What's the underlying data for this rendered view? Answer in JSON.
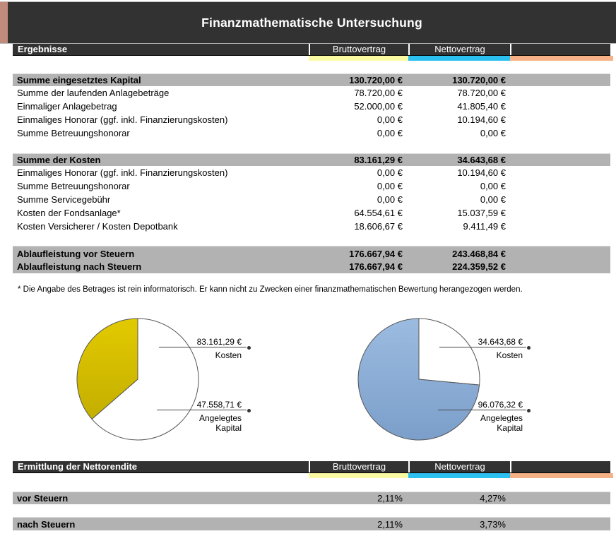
{
  "title": "Finanzmathematische Untersuchung",
  "colors": {
    "accent_tan": "#c08b7a",
    "accent_yellow": "#fafaa3",
    "accent_cyan": "#2bc0f0",
    "accent_orange": "#f6b286",
    "bar_dark": "#323232",
    "row_gray": "#b2b2b2",
    "pie_yellow": "#dcc400",
    "pie_blue": "#8db0d8"
  },
  "results": {
    "header": "Ergebnisse",
    "columns": [
      "Bruttovertrag",
      "Nettovertrag"
    ],
    "sections": [
      {
        "header": {
          "label": "Summe eingesetztes Kapital",
          "brutto": "130.720,00 €",
          "netto": "130.720,00 €"
        },
        "rows": [
          {
            "label": "Summe der laufenden Anlagebeträge",
            "brutto": "78.720,00 €",
            "netto": "78.720,00 €"
          },
          {
            "label": "Einmaliger Anlagebetrag",
            "brutto": "52.000,00 €",
            "netto": "41.805,40 €"
          },
          {
            "label": "Einmaliges Honorar (ggf. inkl. Finanzierungskosten)",
            "brutto": "0,00 €",
            "netto": "10.194,60 €"
          },
          {
            "label": "Summe Betreuungshonorar",
            "brutto": "0,00 €",
            "netto": "0,00 €"
          }
        ]
      },
      {
        "header": {
          "label": "Summe der Kosten",
          "brutto": "83.161,29 €",
          "netto": "34.643,68 €"
        },
        "rows": [
          {
            "label": "Einmaliges Honorar (ggf. inkl. Finanzierungskosten)",
            "brutto": "0,00 €",
            "netto": "10.194,60 €"
          },
          {
            "label": "Summe Betreuungshonorar",
            "brutto": "0,00 €",
            "netto": "0,00 €"
          },
          {
            "label": "Summe Servicegebühr",
            "brutto": "0,00 €",
            "netto": "0,00 €"
          },
          {
            "label": "Kosten der Fondsanlage*",
            "brutto": "64.554,61 €",
            "netto": "15.037,59 €"
          },
          {
            "label": "Kosten Versicherer / Kosten Depotbank",
            "brutto": "18.606,67 €",
            "netto": "9.411,49 €"
          }
        ]
      },
      {
        "rows": [
          {
            "label": "Ablaufleistung vor Steuern",
            "brutto": "176.667,94 €",
            "netto": "243.468,84 €"
          },
          {
            "label": "Ablaufleistung nach Steuern",
            "brutto": "176.667,94 €",
            "netto": "224.359,52 €"
          }
        ]
      }
    ]
  },
  "footnote": "* Die Angabe des Betrages ist rein informatorisch. Er kann nicht zu Zwecken einer finanzmathematischen  Bewertung  herangezogen  werden.",
  "chart_data": [
    {
      "type": "pie",
      "title": "",
      "total": 130720.0,
      "slices": [
        {
          "label": "Kosten",
          "value": 83161.29,
          "value_label": "83.161,29 €",
          "color": "#ffffff"
        },
        {
          "label": "Angelegtes Kapital",
          "value": 47558.71,
          "value_label": "47.558,71 €",
          "color": "#e2ca00",
          "color2": "#c4ae00"
        }
      ]
    },
    {
      "type": "pie",
      "title": "",
      "total": 130720.0,
      "slices": [
        {
          "label": "Kosten",
          "value": 34643.68,
          "value_label": "34.643,68 €",
          "color": "#ffffff"
        },
        {
          "label": "Angelegtes Kapital",
          "value": 96076.32,
          "value_label": "96.076,32 €",
          "color": "#9cbbe0",
          "color2": "#7b9fca"
        }
      ]
    }
  ],
  "rendite": {
    "header": "Ermittlung der Nettorendite",
    "columns": [
      "Bruttovertrag",
      "Nettovertrag"
    ],
    "rows": [
      {
        "label": "vor Steuern",
        "brutto": "2,11%",
        "netto": "4,27%"
      },
      {
        "label": "nach Steuern",
        "brutto": "2,11%",
        "netto": "3,73%"
      }
    ]
  }
}
